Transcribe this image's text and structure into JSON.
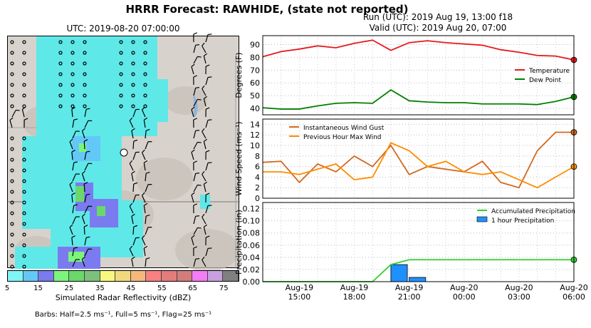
{
  "suptitle": "HRRR Forecast: RAWHIDE, (state not reported)",
  "run_line": "Run (UTC): 2019 Aug 19, 13:00 f18",
  "valid_line": "Valid (UTC): 2019 Aug 20, 07:00",
  "map": {
    "title": "UTC: 2019-08-20 07:00:00",
    "colorbar_label": "Simulated Radar Reflectivity (dBZ)",
    "colorbar_ticks": [
      "5",
      "15",
      "25",
      "35",
      "45",
      "55",
      "65",
      "75"
    ],
    "colorbar_colors": [
      "#7ff5f5",
      "#63c8f8",
      "#7b7bf0",
      "#7cf57c",
      "#6ad86a",
      "#7cc07c",
      "#f8f87c",
      "#f0da7c",
      "#f5b87c",
      "#f88080",
      "#e47c7c",
      "#d47c7c",
      "#f57cf5",
      "#c8a0e0",
      "#808080"
    ],
    "barb_note": "Barbs: Half=2.5 ms⁻¹, Full=5 ms⁻¹, Flag=25 ms⁻¹"
  },
  "chart_data": [
    {
      "type": "line",
      "ylabel": "Degrees (F)",
      "ylim": [
        35,
        97
      ],
      "yticks": [
        40,
        50,
        60,
        70,
        80,
        90
      ],
      "x_hours": [
        0,
        1,
        2,
        3,
        4,
        5,
        6,
        7,
        8,
        9,
        10,
        11,
        12,
        13,
        14,
        15,
        16,
        17
      ],
      "series": [
        {
          "name": "Temperature",
          "color": "#e41a1c",
          "values": [
            80.5,
            84.5,
            86.5,
            89,
            87.5,
            91,
            93.5,
            85.5,
            91.5,
            93,
            91.5,
            90.5,
            89.5,
            86,
            84,
            81.5,
            81,
            78
          ]
        },
        {
          "name": "Dew Point",
          "color": "#008000",
          "values": [
            40.5,
            39.5,
            39.5,
            42,
            44,
            44.5,
            44,
            54.5,
            46,
            45,
            44.5,
            44.5,
            43.5,
            43.5,
            43.5,
            43,
            45.5,
            49
          ]
        }
      ],
      "legend": "right",
      "grid": true
    },
    {
      "type": "line",
      "ylabel": "Wind Speed (ms⁻¹)",
      "ylim": [
        0,
        15
      ],
      "yticks": [
        0,
        2,
        4,
        6,
        8,
        10,
        12,
        14
      ],
      "x_hours": [
        0,
        1,
        2,
        3,
        4,
        5,
        6,
        7,
        8,
        9,
        10,
        11,
        12,
        13,
        14,
        15,
        16,
        17
      ],
      "series": [
        {
          "name": "Instantaneous Wind Gust",
          "color": "#d2691e",
          "values": [
            6.8,
            7,
            3,
            6.5,
            5,
            8,
            6,
            10,
            4.5,
            6,
            5.5,
            5,
            7,
            3,
            2,
            9,
            12.5,
            12.5
          ]
        },
        {
          "name": "Previous Hour Max Wind",
          "color": "#ff8c00",
          "values": [
            5,
            5,
            4.5,
            5.5,
            6.5,
            3.5,
            4,
            10.5,
            9,
            6,
            7,
            5,
            4.5,
            5,
            3.5,
            2,
            4,
            6
          ]
        }
      ],
      "legend": "top-left",
      "grid": true
    },
    {
      "type": "bar",
      "ylabel": "Precipitation (in)",
      "ylim": [
        0,
        0.13
      ],
      "yticks": [
        "0.00",
        "0.02",
        "0.04",
        "0.06",
        "0.08",
        "0.10",
        "0.12"
      ],
      "x_hours": [
        0,
        1,
        2,
        3,
        4,
        5,
        6,
        7,
        8,
        9,
        10,
        11,
        12,
        13,
        14,
        15,
        16,
        17
      ],
      "series": [
        {
          "name": "Accumulated Precipitation",
          "color": "#32cd32",
          "values": [
            0,
            0,
            0,
            0,
            0,
            0,
            0,
            0.028,
            0.036,
            0.036,
            0.036,
            0.036,
            0.036,
            0.036,
            0.036,
            0.036,
            0.036,
            0.036
          ]
        },
        {
          "name": "1 hour Precipitation",
          "color": "#1e90ff",
          "values": [
            0,
            0,
            0,
            0,
            0,
            0,
            0,
            0.028,
            0.007,
            0,
            0,
            0,
            0,
            0,
            0,
            0,
            0,
            0
          ]
        }
      ],
      "legend": "top-right",
      "grid": true
    }
  ],
  "x_ticks": [
    {
      "hour": 2,
      "line1": "Aug-19",
      "line2": "15:00"
    },
    {
      "hour": 5,
      "line1": "Aug-19",
      "line2": "18:00"
    },
    {
      "hour": 8,
      "line1": "Aug-19",
      "line2": "21:00"
    },
    {
      "hour": 11,
      "line1": "Aug-20",
      "line2": "00:00"
    },
    {
      "hour": 14,
      "line1": "Aug-20",
      "line2": "03:00"
    },
    {
      "hour": 17,
      "line1": "Aug-20",
      "line2": "06:00"
    }
  ]
}
